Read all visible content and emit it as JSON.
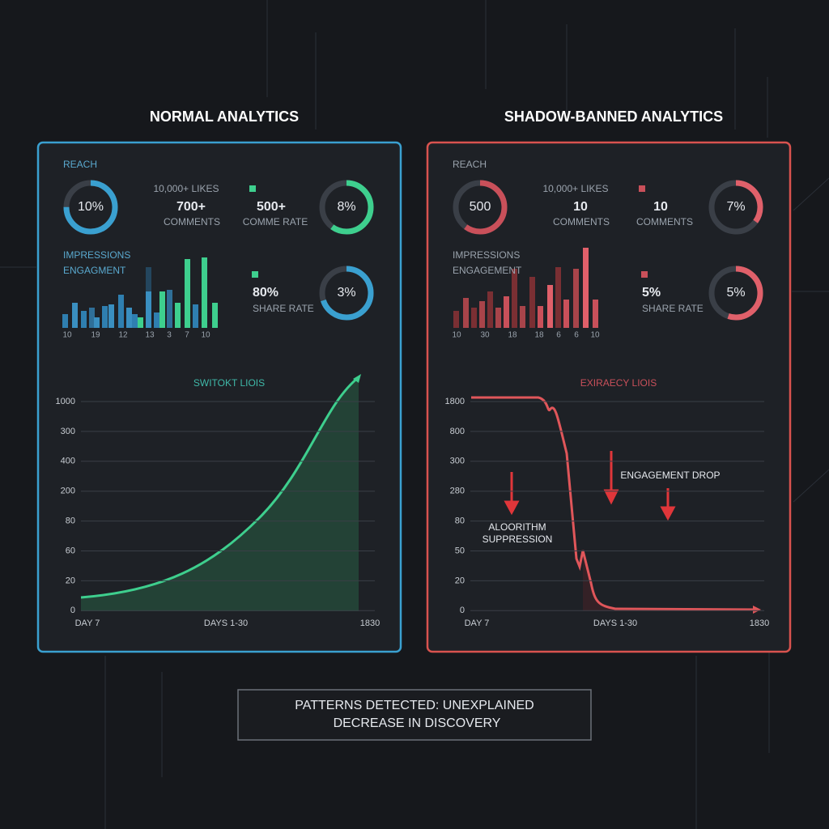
{
  "panels": [
    {
      "title": "NORMAL ANALYTICS",
      "reach_label": "REACH",
      "ring1": "10%",
      "likes": "10,000+ LIKES",
      "likes_value": "700+",
      "comments_label": "COMMENTS",
      "stat2_value": "500+",
      "stat2_label": "COMME RATE",
      "ring2": "8%",
      "impressions": "IMPRESSIONS",
      "engagement": "ENGAGMENT",
      "stat3_value": "80%",
      "stat3_label": "SHARE RATE",
      "ring3": "3%",
      "bar_labels": [
        "10",
        "19",
        "12",
        "13",
        "3",
        "7",
        "10"
      ],
      "chart_title": "SWITOKT LIOIS",
      "y_labels": [
        "1000",
        "300",
        "400",
        "200",
        "80",
        "60",
        "20",
        "0"
      ],
      "x_labels": [
        "DAY 7",
        "DAYS 1-30",
        "1830"
      ]
    },
    {
      "title": "SHADOW-BANNED ANALYTICS",
      "reach_label": "REACH",
      "ring1": "500",
      "likes": "10,000+ LIKES",
      "likes_value": "10",
      "comments_label": "COMMENTS",
      "stat2_value": "10",
      "stat2_label": "COMMENTS",
      "ring2": "7%",
      "impressions": "IMPRESSIONS",
      "engagement": "ENGAGEMENT",
      "stat3_value": "5%",
      "stat3_label": "SHARE RATE",
      "ring3": "5%",
      "bar_labels": [
        "10",
        "30",
        "18",
        "18",
        "6",
        "6",
        "10"
      ],
      "chart_title": "EXIRAECY LIOIS",
      "y_labels": [
        "1800",
        "800",
        "300",
        "280",
        "80",
        "50",
        "20",
        "0"
      ],
      "x_labels": [
        "DAY 7",
        "DAYS 1-30",
        "1830"
      ],
      "annotations": [
        "ENGAGEMENT DROP",
        "ALOORITHM SUPPRESSION"
      ]
    }
  ],
  "footer": {
    "lines": [
      "PATTERNS DETECTED: UNEXPLAINED",
      "DECREASE IN DISCOVERY"
    ]
  }
}
